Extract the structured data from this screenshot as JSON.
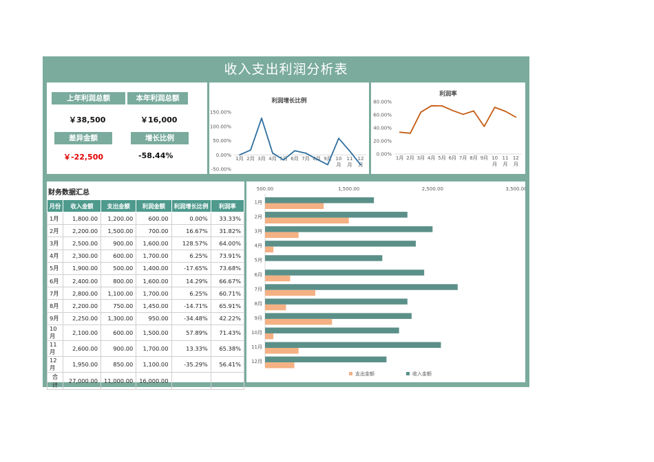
{
  "title": "收入支出利润分析表",
  "kpi": {
    "last_year_label": "上年利润总额",
    "last_year_value": "￥38,500",
    "this_year_label": "本年利润总额",
    "this_year_value": "￥16,000",
    "diff_label": "差异金额",
    "diff_value": "￥-22,500",
    "growth_label": "增长比例",
    "growth_value": "-58.44%",
    "colors": {
      "label_bg": "#7aab9d",
      "negative": "#e00000"
    }
  },
  "table": {
    "heading": "财务数据汇总",
    "columns": [
      "月份",
      "收入金额",
      "支出金额",
      "利润金额",
      "利润增长比例",
      "利润率"
    ],
    "rows": [
      [
        "1月",
        "1,800.00",
        "1,200.00",
        "600.00",
        "0.00%",
        "33.33%"
      ],
      [
        "2月",
        "2,200.00",
        "1,500.00",
        "700.00",
        "16.67%",
        "31.82%"
      ],
      [
        "3月",
        "2,500.00",
        "900.00",
        "1,600.00",
        "128.57%",
        "64.00%"
      ],
      [
        "4月",
        "2,300.00",
        "600.00",
        "1,700.00",
        "6.25%",
        "73.91%"
      ],
      [
        "5月",
        "1,900.00",
        "500.00",
        "1,400.00",
        "-17.65%",
        "73.68%"
      ],
      [
        "6月",
        "2,400.00",
        "800.00",
        "1,600.00",
        "14.29%",
        "66.67%"
      ],
      [
        "7月",
        "2,800.00",
        "1,100.00",
        "1,700.00",
        "6.25%",
        "60.71%"
      ],
      [
        "8月",
        "2,200.00",
        "750.00",
        "1,450.00",
        "-14.71%",
        "65.91%"
      ],
      [
        "9月",
        "2,250.00",
        "1,300.00",
        "950.00",
        "-34.48%",
        "42.22%"
      ],
      [
        "10月",
        "2,100.00",
        "600.00",
        "1,500.00",
        "57.89%",
        "71.43%"
      ],
      [
        "11月",
        "2,600.00",
        "900.00",
        "1,700.00",
        "13.33%",
        "65.38%"
      ],
      [
        "12月",
        "1,950.00",
        "850.00",
        "1,100.00",
        "-35.29%",
        "56.41%"
      ],
      [
        "合计",
        "27,000.00",
        "11,000.00",
        "16,000.00",
        "",
        ""
      ]
    ]
  },
  "chart_data": [
    {
      "type": "line",
      "title": "利润增长比例",
      "categories": [
        "1月",
        "2月",
        "3月",
        "4月",
        "5月",
        "6月",
        "7月",
        "8月",
        "9月",
        "10月",
        "11月",
        "12月"
      ],
      "values": [
        0.0,
        16.67,
        128.57,
        6.25,
        -17.65,
        14.29,
        6.25,
        -14.71,
        -34.48,
        57.89,
        13.33,
        -35.29
      ],
      "ylim": [
        -50,
        150
      ],
      "yticks": [
        "-50.00%",
        "0.00%",
        "50.00%",
        "100.00%",
        "150.00%"
      ],
      "color": "#2e6e9e",
      "grid": false
    },
    {
      "type": "line",
      "title": "利润率",
      "categories": [
        "1月",
        "2月",
        "3月",
        "4月",
        "5月",
        "6月",
        "7月",
        "8月",
        "9月",
        "10月",
        "11月",
        "12月"
      ],
      "values": [
        33.33,
        31.82,
        64.0,
        73.91,
        73.68,
        66.67,
        60.71,
        65.91,
        42.22,
        71.43,
        65.38,
        56.41
      ],
      "ylim": [
        0,
        80
      ],
      "yticks": [
        "0.00%",
        "20.00%",
        "40.00%",
        "60.00%",
        "80.00%"
      ],
      "color": "#c55a11",
      "grid": false
    },
    {
      "type": "bar",
      "orientation": "horizontal",
      "categories": [
        "1月",
        "2月",
        "3月",
        "4月",
        "5月",
        "6月",
        "7月",
        "8月",
        "9月",
        "10月",
        "11月",
        "12月"
      ],
      "series": [
        {
          "name": "支出金额",
          "values": [
            1200,
            1500,
            900,
            600,
            500,
            800,
            1100,
            750,
            1300,
            600,
            900,
            850
          ],
          "color": "#f4b183"
        },
        {
          "name": "收入金额",
          "values": [
            1800,
            2200,
            2500,
            2300,
            1900,
            2400,
            2800,
            2200,
            2250,
            2100,
            2600,
            1950
          ],
          "color": "#5b9089"
        }
      ],
      "xlim": [
        500,
        3500
      ],
      "xticks": [
        "500.00",
        "1,500.00",
        "2,500.00",
        "3,500.00"
      ],
      "legend": "bottom"
    }
  ]
}
